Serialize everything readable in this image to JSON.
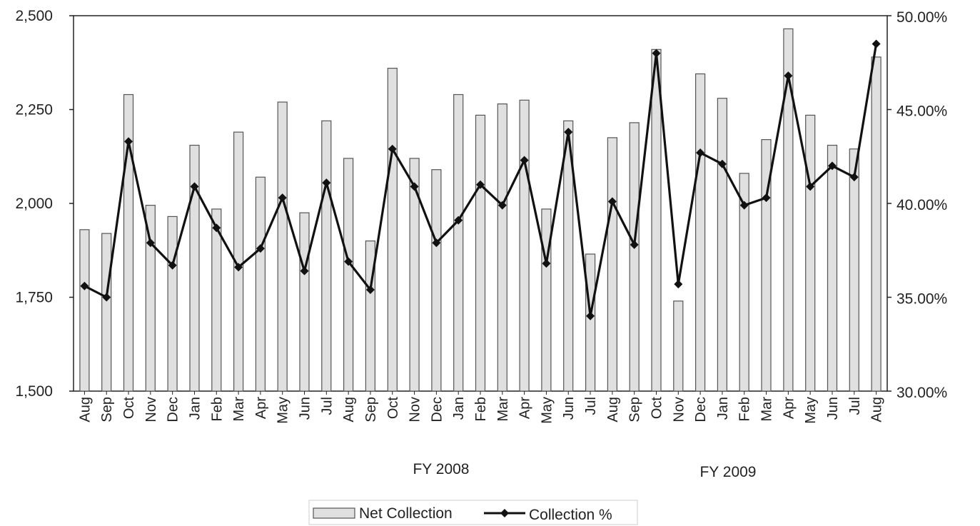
{
  "chart_data": {
    "type": "bar",
    "categories": [
      "Aug",
      "Sep",
      "Oct",
      "Nov",
      "Dec",
      "Jan",
      "Feb",
      "Mar",
      "Apr",
      "May",
      "Jun",
      "Jul",
      "Aug",
      "Sep",
      "Oct",
      "Nov",
      "Dec",
      "Jan",
      "Feb",
      "Mar",
      "Apr",
      "May",
      "Jun",
      "Jul",
      "Aug",
      "Sep",
      "Oct",
      "Nov",
      "Dec",
      "Jan",
      "Feb",
      "Mar",
      "Apr",
      "May",
      "Jun",
      "Jul",
      "Aug"
    ],
    "group_labels": [
      "FY 2008",
      "FY 2009"
    ],
    "series": [
      {
        "name": "Net Collection",
        "type": "bar",
        "axis": "left",
        "values": [
          1930,
          1920,
          2290,
          1995,
          1965,
          2155,
          1985,
          2190,
          2070,
          2270,
          1975,
          2220,
          2120,
          1900,
          2360,
          2120,
          2090,
          2290,
          2235,
          2265,
          2275,
          1985,
          2220,
          1865,
          2175,
          2215,
          2410,
          1740,
          2345,
          2280,
          2080,
          2170,
          2465,
          2235,
          2155,
          2145,
          2390
        ]
      },
      {
        "name": "Collection %",
        "type": "line",
        "axis": "right",
        "values": [
          35.6,
          35.0,
          43.3,
          37.9,
          36.7,
          40.9,
          38.7,
          36.6,
          37.6,
          40.3,
          36.4,
          41.1,
          36.9,
          35.4,
          42.9,
          40.9,
          37.9,
          39.1,
          41.0,
          39.9,
          42.3,
          36.8,
          43.8,
          34.0,
          40.1,
          37.8,
          48.0,
          35.7,
          42.7,
          42.1,
          39.9,
          40.3,
          46.8,
          40.9,
          42.0,
          41.4,
          48.5
        ]
      }
    ],
    "y_left": {
      "ylim": [
        1500,
        2500
      ],
      "ticks": [
        "1,500",
        "1,750",
        "2,000",
        "2,250",
        "2,500"
      ]
    },
    "y_right": {
      "ylim": [
        30,
        50
      ],
      "ticks": [
        "30.00%",
        "35.00%",
        "40.00%",
        "45.00%",
        "50.00%"
      ]
    },
    "legend": {
      "position": "bottom-center",
      "entries": [
        "Net Collection",
        "Collection %"
      ]
    },
    "grid": false,
    "colors": {
      "bar_fill": "#e0e0e0",
      "bar_stroke": "#555555",
      "line": "#111111",
      "axis": "#222222"
    }
  }
}
